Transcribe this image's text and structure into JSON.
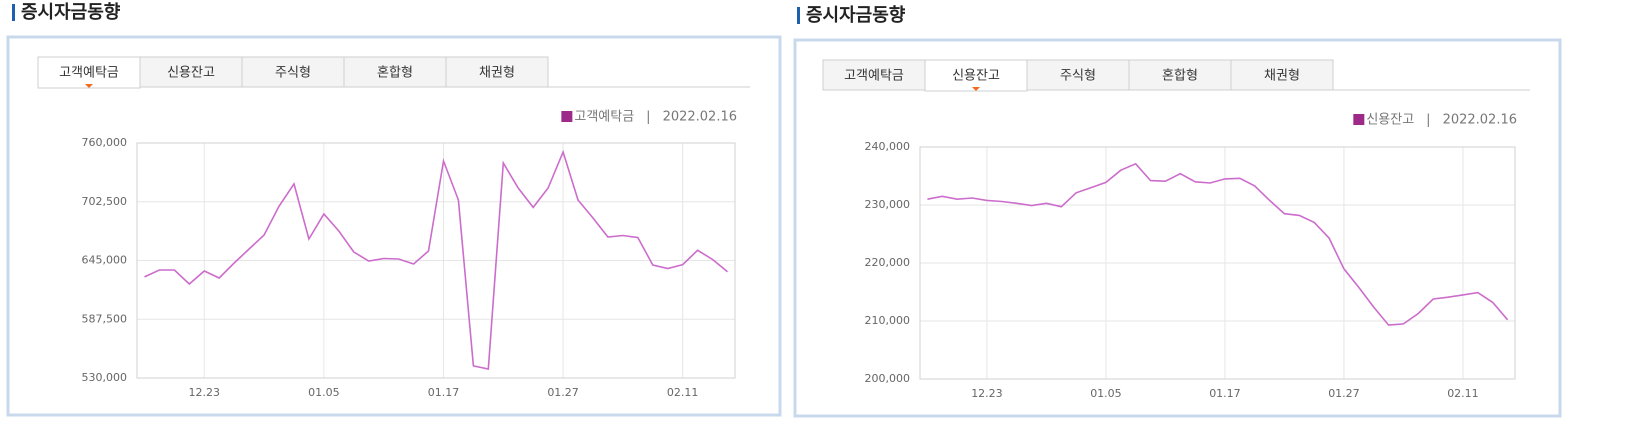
{
  "chart_data": [
    {
      "type": "line",
      "title": "증시자금동향",
      "tabs": [
        "고객예탁금",
        "신용잔고",
        "주식형",
        "혼합형",
        "채권형"
      ],
      "active_tab": 0,
      "legend_separator": "|",
      "legend_date": "2022.02.16",
      "categories": [
        null,
        null,
        null,
        null,
        "12.23",
        null,
        null,
        null,
        null,
        null,
        null,
        null,
        "01.05",
        null,
        null,
        null,
        null,
        null,
        null,
        null,
        "01.17",
        null,
        null,
        null,
        null,
        null,
        null,
        null,
        "01.27",
        null,
        null,
        null,
        null,
        null,
        null,
        null,
        "02.11",
        null,
        null,
        null
      ],
      "series": [
        {
          "name": "고객예탁금",
          "color": "#cc6dcc",
          "values": [
            628900,
            635700,
            635700,
            622000,
            634700,
            627900,
            642600,
            656300,
            670000,
            698000,
            720000,
            666000,
            690500,
            673900,
            653300,
            644500,
            647000,
            646500,
            641600,
            654300,
            742400,
            704200,
            541800,
            538800,
            740400,
            716000,
            697000,
            716000,
            751200,
            704200,
            686600,
            668000,
            669500,
            667500,
            640600,
            637200,
            641000,
            655000,
            646000,
            634000
          ]
        }
      ],
      "ylim": [
        530000,
        760000
      ],
      "yticks": [
        {
          "value": 530000,
          "label": "530,000"
        },
        {
          "value": 587500,
          "label": "587,500"
        },
        {
          "value": 645000,
          "label": "645,000"
        },
        {
          "value": 702500,
          "label": "702,500"
        },
        {
          "value": 760000,
          "label": "760,000"
        }
      ],
      "grid": true
    },
    {
      "type": "line",
      "title": "증시자금동향",
      "tabs": [
        "고객예탁금",
        "신용잔고",
        "주식형",
        "혼합형",
        "채권형"
      ],
      "active_tab": 1,
      "legend_separator": "|",
      "legend_date": "2022.02.16",
      "categories": [
        null,
        null,
        null,
        null,
        "12.23",
        null,
        null,
        null,
        null,
        null,
        null,
        null,
        "01.05",
        null,
        null,
        null,
        null,
        null,
        null,
        null,
        "01.17",
        null,
        null,
        null,
        null,
        null,
        null,
        null,
        "01.27",
        null,
        null,
        null,
        null,
        null,
        null,
        null,
        "02.11",
        null,
        null,
        null
      ],
      "series": [
        {
          "name": "신용잔고",
          "color": "#cc6dcc",
          "values": [
            231000,
            231500,
            231000,
            231200,
            230800,
            230600,
            230300,
            229900,
            230300,
            229700,
            232100,
            233000,
            233900,
            236000,
            237100,
            234200,
            234100,
            235400,
            234000,
            233800,
            234500,
            234600,
            233300,
            230800,
            228500,
            228200,
            227000,
            224300,
            219000,
            215800,
            212400,
            209300,
            209500,
            211300,
            213800,
            214100,
            214500,
            214900,
            213200,
            210200
          ]
        }
      ],
      "ylim": [
        200000,
        240000
      ],
      "yticks": [
        {
          "value": 200000,
          "label": "200,000"
        },
        {
          "value": 210000,
          "label": "210,000"
        },
        {
          "value": 220000,
          "label": "220,000"
        },
        {
          "value": 230000,
          "label": "230,000"
        },
        {
          "value": 240000,
          "label": "240,000"
        }
      ],
      "grid": true
    }
  ]
}
